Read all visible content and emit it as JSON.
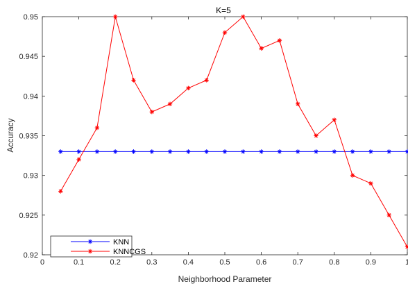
{
  "chart_data": {
    "type": "line",
    "title": "K=5",
    "xlabel": "Neighborhood Parameter",
    "ylabel": "Accuracy",
    "xlim": [
      0,
      1
    ],
    "ylim": [
      0.92,
      0.95
    ],
    "xticks": [
      0,
      0.1,
      0.2,
      0.3,
      0.4,
      0.5,
      0.6,
      0.7,
      0.8,
      0.9,
      1
    ],
    "xtick_labels": [
      "0",
      "0.1",
      "0.2",
      "0.3",
      "0.4",
      "0.5",
      "0.6",
      "0.7",
      "0.8",
      "0.9",
      "1"
    ],
    "yticks": [
      0.92,
      0.925,
      0.93,
      0.935,
      0.94,
      0.945,
      0.95
    ],
    "ytick_labels": [
      "0.92",
      "0.925",
      "0.93",
      "0.935",
      "0.94",
      "0.945",
      "0.95"
    ],
    "grid": false,
    "legend_position": "bottom-left",
    "x": [
      0.05,
      0.1,
      0.15,
      0.2,
      0.25,
      0.3,
      0.35,
      0.4,
      0.45,
      0.5,
      0.55,
      0.6,
      0.65,
      0.7,
      0.75,
      0.8,
      0.85,
      0.9,
      0.95,
      1.0
    ],
    "series": [
      {
        "name": "KNN",
        "color": "#0000ff",
        "marker": "asterisk",
        "values": [
          0.933,
          0.933,
          0.933,
          0.933,
          0.933,
          0.933,
          0.933,
          0.933,
          0.933,
          0.933,
          0.933,
          0.933,
          0.933,
          0.933,
          0.933,
          0.933,
          0.933,
          0.933,
          0.933,
          0.933
        ]
      },
      {
        "name": "KNNCGS",
        "color": "#ff0000",
        "marker": "asterisk",
        "values": [
          0.928,
          0.932,
          0.936,
          0.95,
          0.942,
          0.938,
          0.939,
          0.941,
          0.942,
          0.948,
          0.95,
          0.946,
          0.947,
          0.939,
          0.935,
          0.937,
          0.93,
          0.929,
          0.925,
          0.921
        ]
      }
    ]
  }
}
